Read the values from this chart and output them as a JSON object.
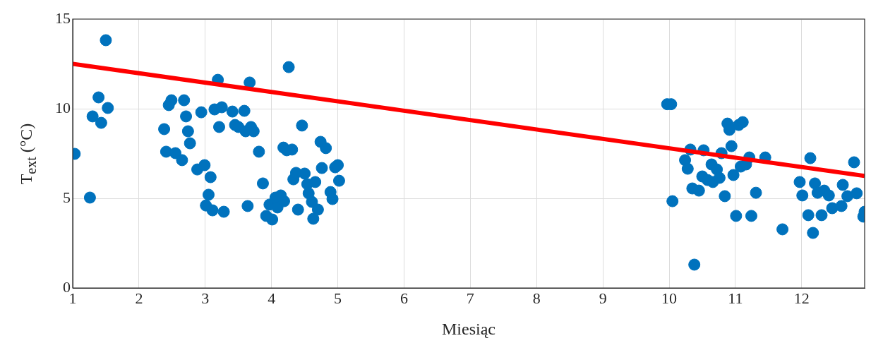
{
  "chart_data": {
    "type": "scatter",
    "xlabel": "Miesiąc",
    "ylabel": "T$_{ext}$  (°C)",
    "xlim": [
      1,
      12.95
    ],
    "ylim": [
      0,
      15
    ],
    "xticks": [
      1,
      2,
      3,
      4,
      5,
      6,
      7,
      8,
      9,
      10,
      11,
      12
    ],
    "yticks": [
      0,
      5,
      10,
      15
    ],
    "grid": true,
    "series": [
      {
        "type": "scatter",
        "marker": "circle",
        "color": "#0072bd",
        "x": [
          1.03,
          1.26,
          1.3,
          1.39,
          1.43,
          1.5,
          1.53,
          2.38,
          2.41,
          2.45,
          2.49,
          2.55,
          2.65,
          2.68,
          2.71,
          2.74,
          2.77,
          2.88,
          2.94,
          2.99,
          3.01,
          3.08,
          3.05,
          3.11,
          3.19,
          3.14,
          3.21,
          3.25,
          3.28,
          3.41,
          3.45,
          3.5,
          3.59,
          3.61,
          3.67,
          3.69,
          3.64,
          3.73,
          3.81,
          3.87,
          3.92,
          3.97,
          4.01,
          4.06,
          4.09,
          4.14,
          4.19,
          4.18,
          4.23,
          4.26,
          4.31,
          4.33,
          4.37,
          4.4,
          4.46,
          4.5,
          4.54,
          4.56,
          4.61,
          4.63,
          4.66,
          4.7,
          4.74,
          4.76,
          4.82,
          4.89,
          4.92,
          4.96,
          5.0,
          5.02,
          9.97,
          10.03,
          10.05,
          10.32,
          10.24,
          10.28,
          10.35,
          10.38,
          10.45,
          10.5,
          10.52,
          10.64,
          10.72,
          10.58,
          10.66,
          10.76,
          10.79,
          10.84,
          10.88,
          10.91,
          10.94,
          10.97,
          11.01,
          11.05,
          11.11,
          11.08,
          11.16,
          11.21,
          11.24,
          11.31,
          11.45,
          11.71,
          11.97,
          12.01,
          12.1,
          12.13,
          12.17,
          12.2,
          12.24,
          12.3,
          12.34,
          12.41,
          12.46,
          12.6,
          12.62,
          12.69,
          12.79,
          12.83,
          12.93,
          12.95
        ],
        "values": [
          7.48,
          5.04,
          9.57,
          10.63,
          9.21,
          13.82,
          10.04,
          8.86,
          7.6,
          10.2,
          10.47,
          7.52,
          7.13,
          10.47,
          9.57,
          8.74,
          8.07,
          6.61,
          9.8,
          6.85,
          4.6,
          6.18,
          5.2,
          4.33,
          11.61,
          9.96,
          8.98,
          10.08,
          4.25,
          9.84,
          9.09,
          8.98,
          9.88,
          8.74,
          11.46,
          8.98,
          4.57,
          8.74,
          7.6,
          5.83,
          4.02,
          4.65,
          3.82,
          5.04,
          4.49,
          5.16,
          4.84,
          7.83,
          7.68,
          12.32,
          7.72,
          6.06,
          6.42,
          4.37,
          9.06,
          6.38,
          5.79,
          5.28,
          4.8,
          3.86,
          5.91,
          4.37,
          8.15,
          6.69,
          7.8,
          5.35,
          4.96,
          6.73,
          6.85,
          5.98,
          10.25,
          10.25,
          4.84,
          7.72,
          7.13,
          6.65,
          5.55,
          1.3,
          5.43,
          6.22,
          7.68,
          6.89,
          6.61,
          6.02,
          5.91,
          6.14,
          7.52,
          5.12,
          9.17,
          8.82,
          7.91,
          6.3,
          4.02,
          9.09,
          9.25,
          6.77,
          6.89,
          7.28,
          4.02,
          5.31,
          7.28,
          3.27,
          5.91,
          5.16,
          4.06,
          7.24,
          3.07,
          5.83,
          5.31,
          4.06,
          5.43,
          5.16,
          4.45,
          4.57,
          5.75,
          5.12,
          7.01,
          5.28,
          3.98,
          4.25
        ]
      },
      {
        "type": "line",
        "color": "#ff0000",
        "x": [
          1,
          12.95
        ],
        "values": [
          12.5,
          6.25
        ]
      }
    ]
  }
}
